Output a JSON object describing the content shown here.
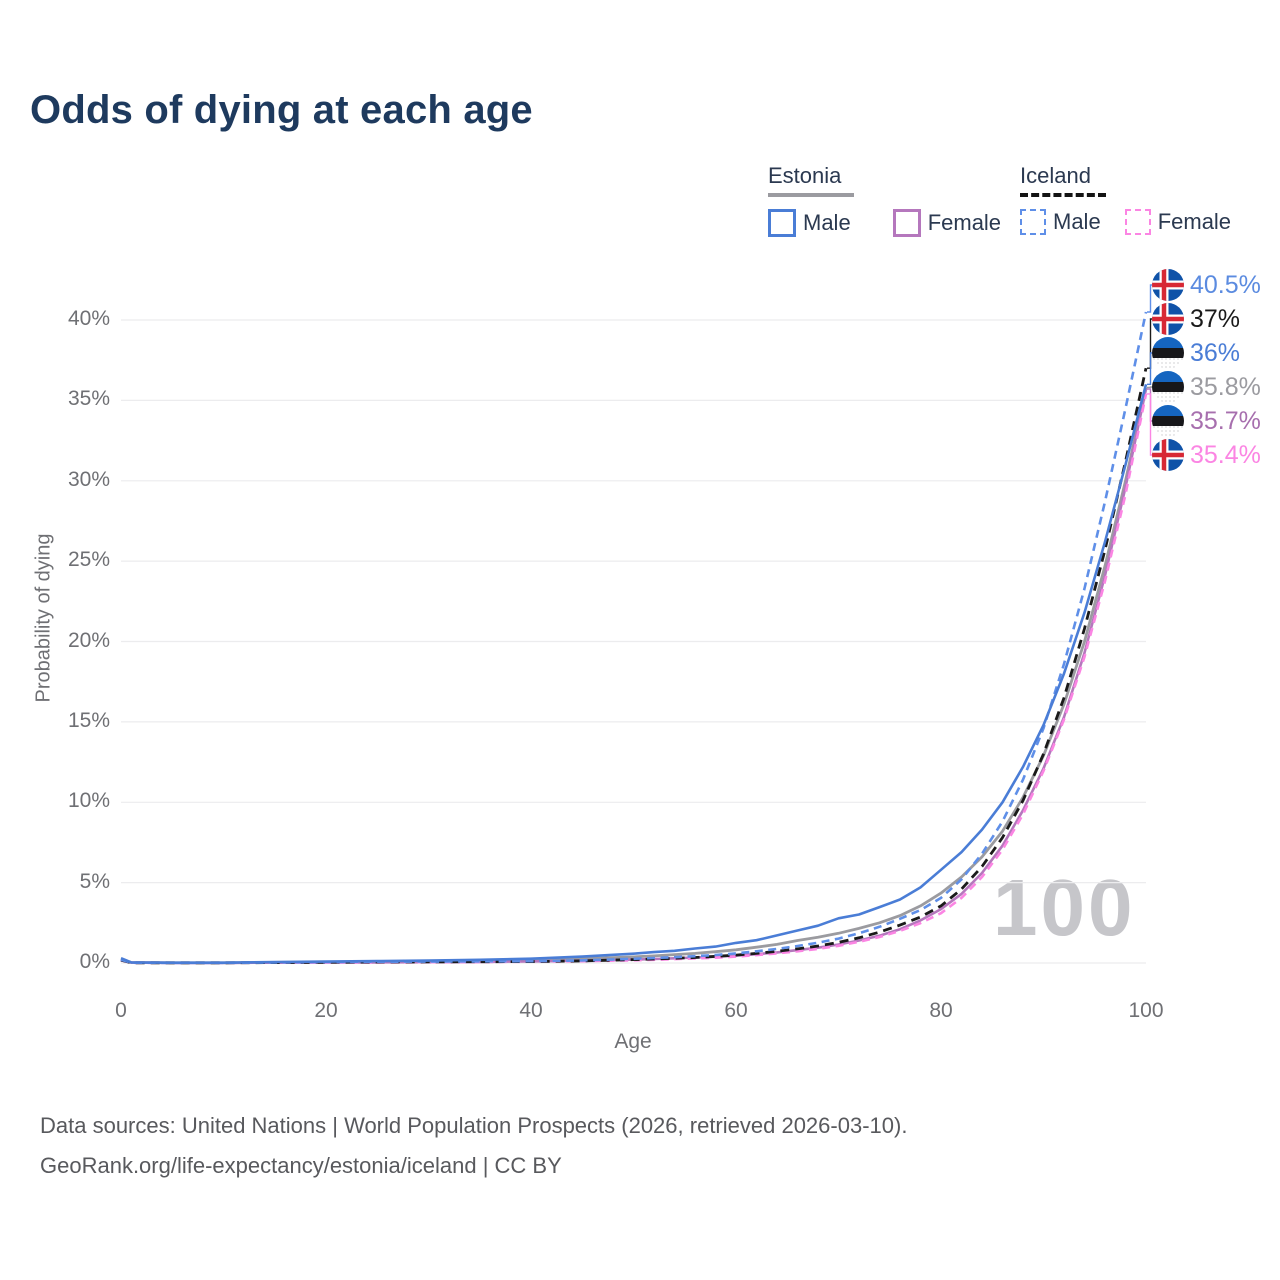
{
  "title": "Odds of dying at each age",
  "watermark_age": "100",
  "legend": {
    "groups": [
      {
        "label": "Estonia",
        "line_style": "solid",
        "line_color": "#9b9ba0",
        "items": [
          {
            "label": "Male",
            "color": "#4a7dd6",
            "line_style": "solid"
          },
          {
            "label": "Female",
            "color": "#b577bd",
            "line_style": "solid"
          }
        ]
      },
      {
        "label": "Iceland",
        "line_style": "dashed",
        "line_color": "#141414",
        "items": [
          {
            "label": "Male",
            "color": "#5f8fe8",
            "line_style": "dashed"
          },
          {
            "label": "Female",
            "color": "#fb85e3",
            "line_style": "dashed"
          }
        ]
      }
    ]
  },
  "footer": {
    "line1": "Data sources: United Nations | World Population Prospects (2026, retrieved 2026-03-10).",
    "line2": "GeoRank.org/life-expectancy/estonia/iceland | CC BY"
  },
  "chart_data": {
    "type": "line",
    "title": "Odds of dying at each age",
    "xlabel": "Age",
    "ylabel": "Probability of dying",
    "xlim": [
      0,
      100
    ],
    "ylim_pct": [
      0,
      42
    ],
    "x_ticks": [
      0,
      20,
      40,
      60,
      80,
      100
    ],
    "y_ticks_pct": [
      0,
      5,
      10,
      15,
      20,
      25,
      30,
      35,
      40
    ],
    "grid": "horizontal",
    "legend_position": "top-right",
    "gridline_color": "#ececee",
    "ages": [
      0,
      1,
      5,
      10,
      15,
      20,
      25,
      30,
      35,
      40,
      45,
      50,
      52,
      54,
      56,
      58,
      60,
      62,
      64,
      66,
      68,
      70,
      72,
      74,
      76,
      78,
      80,
      82,
      84,
      86,
      88,
      90,
      92,
      94,
      96,
      98,
      100
    ],
    "series": [
      {
        "name": "Estonia — Both sexes",
        "country": "Estonia",
        "sex": "Both sexes",
        "dash": "solid",
        "color": "#9b9ba0",
        "width": 2.8,
        "flag": "estonia",
        "end_label": "35.8%",
        "end_label_color": "#9b9ba0",
        "values": [
          0.25,
          0.03,
          0.015,
          0.015,
          0.04,
          0.055,
          0.07,
          0.09,
          0.12,
          0.17,
          0.26,
          0.38,
          0.44,
          0.52,
          0.6,
          0.7,
          0.82,
          0.98,
          1.16,
          1.4,
          1.6,
          1.85,
          2.15,
          2.5,
          2.95,
          3.55,
          4.35,
          5.35,
          6.6,
          8.2,
          10.3,
          12.9,
          16.1,
          20.0,
          24.7,
          30.0,
          35.8
        ]
      },
      {
        "name": "Estonia — Female",
        "country": "Estonia",
        "sex": "Female",
        "dash": "solid",
        "color": "#b577bd",
        "width": 2.6,
        "flag": "estonia",
        "end_label": "35.7%",
        "end_label_color": "#a76fae",
        "values": [
          0.22,
          0.025,
          0.01,
          0.01,
          0.02,
          0.03,
          0.04,
          0.05,
          0.07,
          0.1,
          0.15,
          0.21,
          0.25,
          0.29,
          0.34,
          0.39,
          0.46,
          0.55,
          0.66,
          0.8,
          0.95,
          1.15,
          1.4,
          1.7,
          2.1,
          2.65,
          3.35,
          4.3,
          5.6,
          7.3,
          9.5,
          12.1,
          15.3,
          19.3,
          24.1,
          29.6,
          35.7
        ]
      },
      {
        "name": "Iceland — Female",
        "country": "Iceland",
        "sex": "Female",
        "dash": "dashed",
        "dash_pattern": "8 5.5",
        "color": "#fb85e3",
        "width": 2.6,
        "flag": "iceland",
        "end_label": "35.4%",
        "end_label_color": "#fb85e3",
        "values": [
          0.16,
          0.012,
          0.01,
          0.01,
          0.02,
          0.03,
          0.04,
          0.05,
          0.06,
          0.08,
          0.11,
          0.17,
          0.2,
          0.24,
          0.28,
          0.33,
          0.4,
          0.49,
          0.6,
          0.73,
          0.88,
          1.07,
          1.32,
          1.62,
          2.0,
          2.48,
          3.1,
          4.05,
          5.35,
          7.05,
          9.25,
          11.95,
          15.15,
          19.05,
          23.75,
          29.15,
          35.4
        ]
      },
      {
        "name": "Iceland — Both sexes",
        "country": "Iceland",
        "sex": "Both sexes",
        "dash": "dashed",
        "dash_pattern": "9 6",
        "color": "#1a1a1a",
        "width": 2.8,
        "flag": "iceland",
        "end_label": "37%",
        "end_label_color": "#1a1a1a",
        "values": [
          0.18,
          0.015,
          0.01,
          0.01,
          0.025,
          0.045,
          0.06,
          0.07,
          0.08,
          0.09,
          0.13,
          0.21,
          0.25,
          0.29,
          0.34,
          0.41,
          0.49,
          0.6,
          0.73,
          0.88,
          1.06,
          1.28,
          1.57,
          1.92,
          2.36,
          2.86,
          3.55,
          4.6,
          6.0,
          7.8,
          10.1,
          13.0,
          16.5,
          20.8,
          25.7,
          31.2,
          37.0
        ]
      },
      {
        "name": "Iceland — Male",
        "country": "Iceland",
        "sex": "Male",
        "dash": "dashed",
        "dash_pattern": "8 5.5",
        "color": "#5f8fe8",
        "width": 2.6,
        "flag": "iceland",
        "end_label": "40.5%",
        "end_label_color": "#5b8be0",
        "values": [
          0.2,
          0.02,
          0.01,
          0.01,
          0.03,
          0.06,
          0.08,
          0.09,
          0.1,
          0.11,
          0.16,
          0.26,
          0.31,
          0.36,
          0.42,
          0.5,
          0.6,
          0.73,
          0.88,
          1.06,
          1.26,
          1.52,
          1.85,
          2.25,
          2.75,
          3.3,
          4.05,
          5.2,
          6.8,
          8.8,
          11.4,
          14.6,
          18.6,
          23.3,
          28.7,
          34.5,
          40.5
        ]
      },
      {
        "name": "Estonia — Male",
        "country": "Estonia",
        "sex": "Male",
        "dash": "solid",
        "color": "#4a7dd6",
        "width": 2.6,
        "flag": "estonia",
        "end_label": "36%",
        "end_label_color": "#4a7dd6",
        "values": [
          0.3,
          0.04,
          0.02,
          0.02,
          0.06,
          0.09,
          0.12,
          0.15,
          0.2,
          0.27,
          0.4,
          0.58,
          0.68,
          0.76,
          0.9,
          1.02,
          1.25,
          1.42,
          1.72,
          2.02,
          2.32,
          2.78,
          3.02,
          3.48,
          3.95,
          4.7,
          5.8,
          6.9,
          8.3,
          10.0,
          12.2,
          14.8,
          18.0,
          21.8,
          26.2,
          31.0,
          36.0
        ]
      }
    ]
  }
}
